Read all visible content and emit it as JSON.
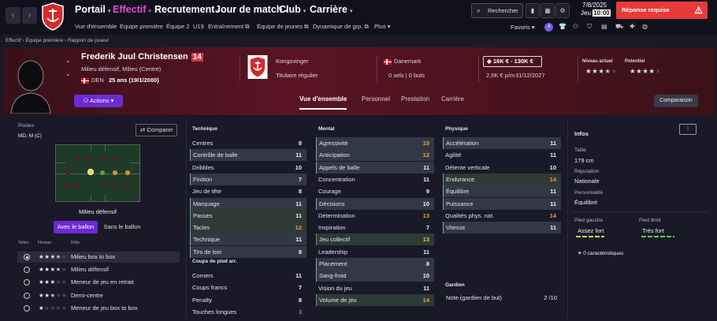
{
  "nav": {
    "back": "‹",
    "forward": "›",
    "main": [
      "Portail",
      "Effectif",
      "Recrutement",
      "Jour de match",
      "Club",
      "Carrière"
    ],
    "active": "Effectif",
    "sub": [
      "Vue d'ensemble",
      "Équipe première",
      "Équipe 2",
      "U19",
      "Entraînement",
      "Équipe de jeunes",
      "Dynamique de grp.",
      "Plus"
    ],
    "search": "Rechercher",
    "date": "7/8/2025",
    "day": "Jeu",
    "time": "10:00",
    "alert": "Réponse requise",
    "favorites": "Favoris",
    "fav_count": "4"
  },
  "breadcrumb": [
    "Effectif",
    "Équipe première",
    "Rapport de joueur"
  ],
  "player": {
    "name": "Frederik Juul Christensen",
    "number": "14",
    "position": "Milieu défensif, Milieu (Centre)",
    "nationality": "DEN",
    "age": "25 ans (19/1/2000)",
    "club": "Kongsvinger",
    "status": "Titulaire régulier",
    "country": "Danemark",
    "caps": "0 sels | 0 buts",
    "value": "16K € - 130K €",
    "wage": "2,5K € p/m",
    "contract": "31/12/2027",
    "current_level_label": "Niveau actuel",
    "potential_label": "Potentiel",
    "current_stars": 3.5,
    "potential_stars": 4,
    "actions": "Actions"
  },
  "tabs": [
    "Vue d'ensemble",
    "Personnel",
    "Prestation",
    "Carrière"
  ],
  "compare_top": "Comparaison",
  "positions": {
    "label": "Postes",
    "value": "MD, M (C)",
    "compare": "Comparer",
    "role_title": "Milieu défensif",
    "with_ball": "Avec le ballon",
    "without_ball": "Sans le ballon",
    "headers": [
      "Sélec.",
      "Niveau",
      "Rôle"
    ],
    "roles": [
      {
        "name": "Milieu box to box",
        "stars": 3.5,
        "selected": true
      },
      {
        "name": "Milieu défensif",
        "stars": 3.5,
        "selected": false
      },
      {
        "name": "Meneur de jeu en retrait",
        "stars": 3,
        "selected": false
      },
      {
        "name": "Demi-centre",
        "stars": 2.5,
        "selected": false
      },
      {
        "name": "Meneur de jeu box to box",
        "stars": 1,
        "selected": false
      }
    ]
  },
  "technique": {
    "title": "Technique",
    "attrs": [
      {
        "n": "Centres",
        "v": "8",
        "c": "w",
        "h": ""
      },
      {
        "n": "Contrôle de balle",
        "v": "11",
        "c": "w",
        "h": "hl"
      },
      {
        "n": "Dribbles",
        "v": "10",
        "c": "w",
        "h": ""
      },
      {
        "n": "Finition",
        "v": "7",
        "c": "w",
        "h": "hl"
      },
      {
        "n": "Jeu de tête",
        "v": "8",
        "c": "w",
        "h": ""
      },
      {
        "n": "Marquage",
        "v": "11",
        "c": "w",
        "h": "hl"
      },
      {
        "n": "Passes",
        "v": "11",
        "c": "w",
        "h": "hl2"
      },
      {
        "n": "Tacles",
        "v": "12",
        "c": "o",
        "h": "hl2"
      },
      {
        "n": "Technique",
        "v": "11",
        "c": "w",
        "h": "hl"
      },
      {
        "n": "Tirs de loin",
        "v": "8",
        "c": "w",
        "h": "hl"
      }
    ],
    "set_title": "Coups de pied arr.",
    "set": [
      {
        "n": "Corners",
        "v": "11",
        "c": "w",
        "h": ""
      },
      {
        "n": "Coups francs",
        "v": "7",
        "c": "w",
        "h": ""
      },
      {
        "n": "Penalty",
        "v": "8",
        "c": "w",
        "h": ""
      },
      {
        "n": "Touches longues",
        "v": "3",
        "c": "g",
        "h": ""
      }
    ]
  },
  "mental": {
    "title": "Mental",
    "attrs": [
      {
        "n": "Agressivité",
        "v": "15",
        "c": "o",
        "h": "hl"
      },
      {
        "n": "Anticipation",
        "v": "12",
        "c": "o",
        "h": "hl"
      },
      {
        "n": "Appels de balle",
        "v": "11",
        "c": "w",
        "h": "hl"
      },
      {
        "n": "Concentration",
        "v": "11",
        "c": "w",
        "h": ""
      },
      {
        "n": "Courage",
        "v": "9",
        "c": "w",
        "h": ""
      },
      {
        "n": "Décisions",
        "v": "10",
        "c": "w",
        "h": "hl"
      },
      {
        "n": "Détermination",
        "v": "13",
        "c": "o",
        "h": ""
      },
      {
        "n": "Inspiration",
        "v": "7",
        "c": "w",
        "h": ""
      },
      {
        "n": "Jeu collectif",
        "v": "13",
        "c": "y",
        "h": "hl2"
      },
      {
        "n": "Leadership",
        "v": "11",
        "c": "w",
        "h": ""
      },
      {
        "n": "Placement",
        "v": "8",
        "c": "w",
        "h": "hl"
      },
      {
        "n": "Sang-froid",
        "v": "10",
        "c": "w",
        "h": "hl"
      },
      {
        "n": "Vision du jeu",
        "v": "11",
        "c": "w",
        "h": ""
      },
      {
        "n": "Volume de jeu",
        "v": "14",
        "c": "o",
        "h": "hl2"
      }
    ]
  },
  "physique": {
    "title": "Physique",
    "attrs": [
      {
        "n": "Accélération",
        "v": "11",
        "c": "w",
        "h": "hl"
      },
      {
        "n": "Agilité",
        "v": "11",
        "c": "w",
        "h": ""
      },
      {
        "n": "Détente verticale",
        "v": "10",
        "c": "w",
        "h": ""
      },
      {
        "n": "Endurance",
        "v": "14",
        "c": "o",
        "h": "hl2"
      },
      {
        "n": "Équilibre",
        "v": "11",
        "c": "w",
        "h": "hl"
      },
      {
        "n": "Puissance",
        "v": "11",
        "c": "w",
        "h": "hl"
      },
      {
        "n": "Qualités phys. nat.",
        "v": "14",
        "c": "o",
        "h": ""
      },
      {
        "n": "Vitesse",
        "v": "11",
        "c": "w",
        "h": "hl"
      }
    ],
    "gk_title": "Gardien",
    "gk_label": "Note (gardien de but)",
    "gk_value": "2 /10"
  },
  "info": {
    "title": "Infos",
    "height_label": "Taille",
    "height": "179 cm",
    "rep_label": "Réputation",
    "rep": "Nationale",
    "pers_label": "Personnalité",
    "pers": "Équilibré",
    "lfoot_label": "Pied gauche",
    "lfoot": "Assez fort",
    "rfoot_label": "Pied droit",
    "rfoot": "Très fort",
    "traits": "0 caractéristiques"
  }
}
